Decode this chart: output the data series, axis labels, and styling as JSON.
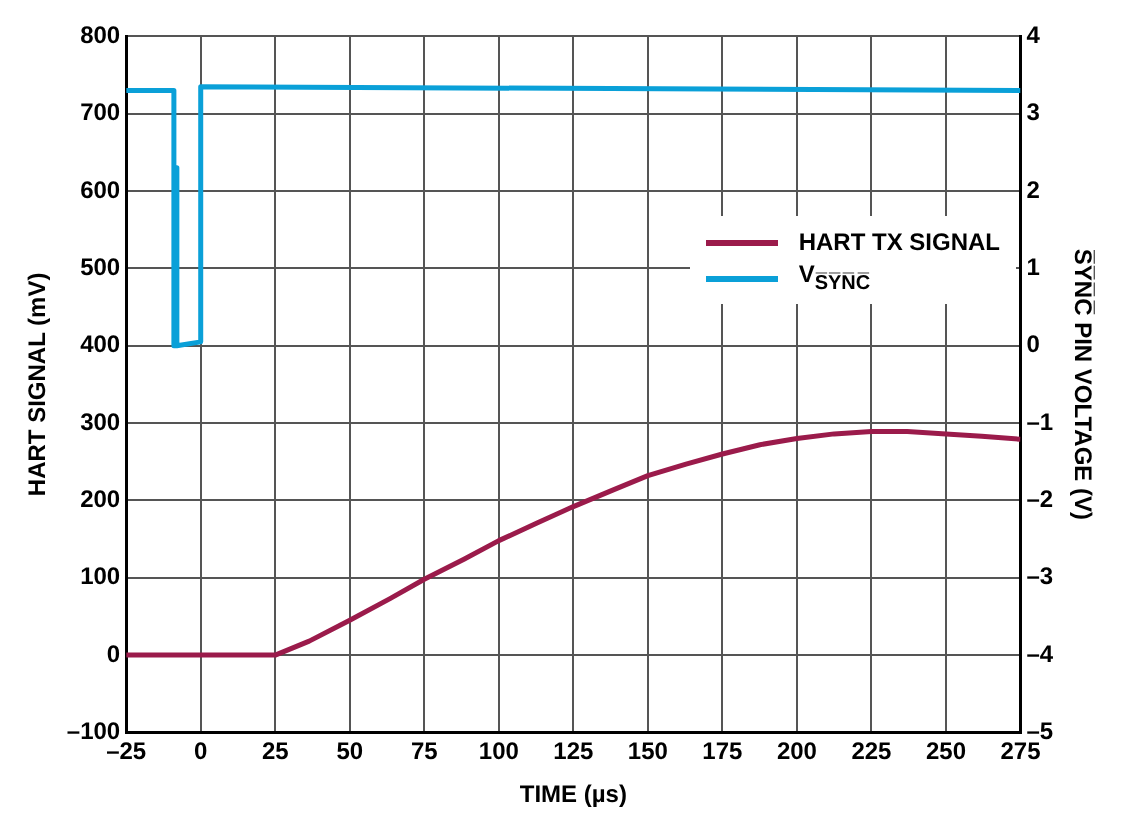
{
  "chart_data": {
    "type": "line",
    "xlabel": "TIME (µs)",
    "ylabel": "HART SIGNAL (mV)",
    "y2label": "S̅Y̅N̅C̅ PIN VOLTAGE (V)",
    "xlim": [
      -25,
      275
    ],
    "xticks": [
      {
        "value": -25,
        "label": "–25"
      },
      0,
      25,
      50,
      75,
      100,
      125,
      150,
      175,
      200,
      225,
      250,
      275
    ],
    "ylim": [
      -100,
      800
    ],
    "yticks": [
      {
        "value": -100,
        "label": "–100"
      },
      0,
      100,
      200,
      300,
      400,
      500,
      600,
      700,
      800
    ],
    "y2lim": [
      -5,
      4
    ],
    "y2ticks": [
      {
        "value": -5,
        "label": "–5"
      },
      {
        "value": -4,
        "label": "–4"
      },
      {
        "value": -3,
        "label": "–3"
      },
      {
        "value": -2,
        "label": "–2"
      },
      {
        "value": -1,
        "label": "–1"
      },
      0,
      1,
      2,
      3,
      4
    ],
    "grid": true,
    "legend": "right",
    "series": [
      {
        "name": "HART TX SIGNAL",
        "color": "#9b1b4b",
        "x": [
          -25,
          0,
          25,
          36.4,
          50,
          63.5,
          75,
          88.3,
          100,
          113,
          125,
          138,
          150,
          162.8,
          175,
          187.6,
          200,
          212.5,
          225,
          237,
          250,
          262,
          275
        ],
        "values": [
          0,
          0,
          0,
          18,
          45,
          73,
          98,
          124,
          148,
          171,
          192,
          213,
          232,
          247,
          260,
          272,
          280,
          286,
          289,
          289,
          286,
          283,
          279
        ]
      },
      {
        "name": "V$_{S̅Y̅N̅C̅}$",
        "color": "#0aa0d8",
        "axis": "y2",
        "x": [
          -25,
          -9,
          -9,
          -8,
          -8,
          -8,
          0,
          0,
          275
        ],
        "values": [
          3.3,
          3.3,
          0,
          0,
          2.3,
          0,
          0.05,
          3.35,
          3.3
        ]
      }
    ]
  }
}
